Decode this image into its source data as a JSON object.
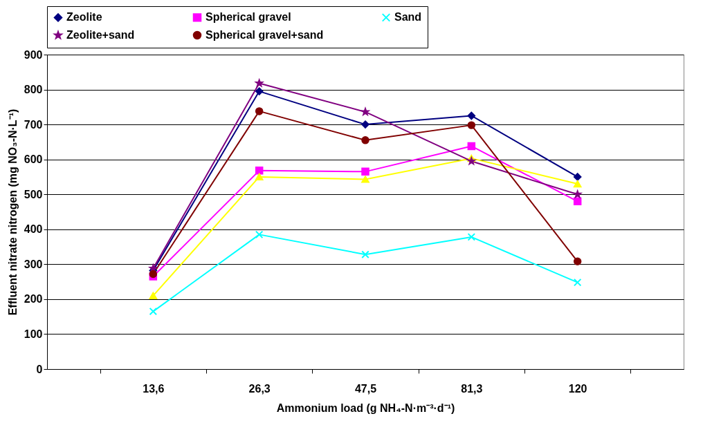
{
  "chart_data": {
    "type": "line",
    "xlabel": "Ammonium load (g NH₄-N·m⁻³·d⁻¹)",
    "ylabel": "Effluent nitrate nitrogen (mg NO₃-N·L⁻¹)",
    "categories": [
      "13,6",
      "26,3",
      "47,5",
      "81,3",
      "120"
    ],
    "ylim": [
      0,
      900
    ],
    "yticks": [
      0,
      100,
      200,
      300,
      400,
      500,
      600,
      700,
      800,
      900
    ],
    "grid": "y",
    "legend": "top",
    "series": [
      {
        "name": "Zeolite",
        "color": "#000080",
        "marker": "diamond",
        "values": [
          282,
          795,
          700,
          725,
          550
        ]
      },
      {
        "name": "Spherical gravel",
        "color": "#ff00ff",
        "marker": "square",
        "values": [
          265,
          568,
          565,
          638,
          480
        ]
      },
      {
        "color": "#ffff00",
        "marker": "triangle",
        "values": [
          210,
          550,
          543,
          603,
          530
        ]
      },
      {
        "name": "Sand",
        "color": "#00ffff",
        "marker": "cross",
        "values": [
          165,
          385,
          328,
          378,
          248
        ]
      },
      {
        "name": "Zeolite+sand",
        "color": "#800080",
        "marker": "star",
        "values": [
          288,
          818,
          736,
          595,
          500
        ]
      },
      {
        "name": "Spherical gravel+sand",
        "color": "#800000",
        "marker": "circle",
        "values": [
          272,
          738,
          655,
          698,
          308
        ]
      }
    ]
  }
}
